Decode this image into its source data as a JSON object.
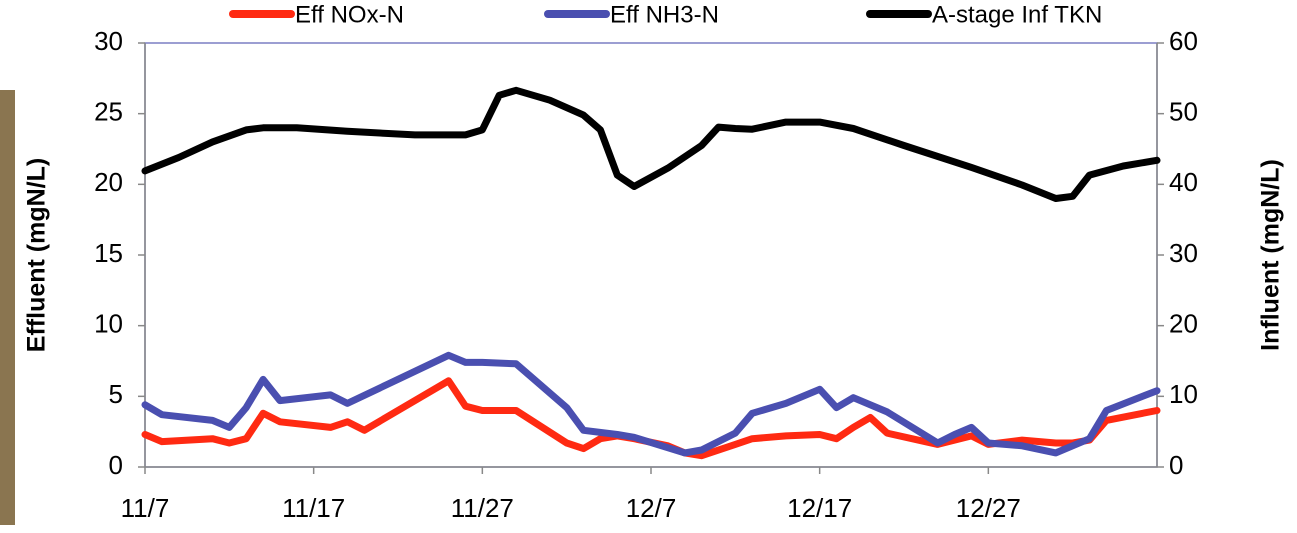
{
  "chart_data": {
    "type": "line",
    "y_label": "Effluent (mgN/L)",
    "y2_label": "Influent (mgN/L)",
    "xlim": [
      0,
      60
    ],
    "xticks": [
      {
        "value": 0,
        "label": "11/7"
      },
      {
        "value": 10,
        "label": "11/17"
      },
      {
        "value": 20,
        "label": "11/27"
      },
      {
        "value": 30,
        "label": "12/7"
      },
      {
        "value": 40,
        "label": "12/17"
      },
      {
        "value": 50,
        "label": "12/27"
      }
    ],
    "ylim": [
      0,
      30
    ],
    "yticks": [
      0,
      5,
      10,
      15,
      20,
      25,
      30
    ],
    "y2lim": [
      0,
      60
    ],
    "y2ticks": [
      0,
      10,
      20,
      30,
      40,
      50,
      60
    ],
    "legend": "top",
    "series": [
      {
        "name": "Eff NOx-N",
        "color": "#ff2a12",
        "x": [
          0,
          1,
          4,
          5,
          6,
          7,
          8,
          11,
          12,
          13,
          18,
          19,
          20,
          22,
          25,
          26,
          27,
          28,
          29,
          31,
          32,
          33,
          35,
          36,
          38,
          40,
          41,
          42,
          43,
          44,
          47,
          49,
          50,
          52,
          54,
          55,
          56,
          57,
          60
        ],
        "values": [
          2.3,
          1.8,
          2.0,
          1.7,
          2.0,
          3.8,
          3.2,
          2.8,
          3.2,
          2.6,
          6.1,
          4.3,
          4.0,
          4.0,
          1.7,
          1.3,
          2.0,
          2.2,
          2.0,
          1.5,
          1.0,
          0.8,
          1.6,
          2.0,
          2.2,
          2.3,
          2.0,
          2.8,
          3.5,
          2.4,
          1.6,
          2.2,
          1.6,
          1.9,
          1.7,
          1.7,
          1.9,
          3.3,
          4.0
        ]
      },
      {
        "name": "Eff NH3-N",
        "color": "#4a4fb0",
        "x": [
          0,
          1,
          4,
          5,
          6,
          7,
          8,
          11,
          12,
          18,
          19,
          20,
          22,
          25,
          26,
          28,
          29,
          32,
          33,
          35,
          36,
          38,
          40,
          41,
          42,
          44,
          47,
          48,
          49,
          50,
          52,
          54,
          56,
          57,
          60
        ],
        "values": [
          4.4,
          3.7,
          3.3,
          2.8,
          4.2,
          6.2,
          4.7,
          5.1,
          4.5,
          7.9,
          7.4,
          7.4,
          7.3,
          4.2,
          2.6,
          2.3,
          2.1,
          1.0,
          1.2,
          2.4,
          3.8,
          4.5,
          5.5,
          4.2,
          4.9,
          3.9,
          1.7,
          2.3,
          2.8,
          1.7,
          1.5,
          1.0,
          2.0,
          4.0,
          5.4
        ]
      },
      {
        "name": "A-stage Inf TKN",
        "color": "#000000",
        "axis": "y2",
        "x": [
          0,
          2,
          4,
          6,
          7,
          9,
          12,
          16,
          19,
          20,
          21,
          22,
          24,
          26,
          27,
          28,
          29,
          31,
          33,
          34,
          35,
          36,
          38,
          40,
          42,
          45,
          49,
          52,
          54,
          55,
          56,
          58,
          60
        ],
        "values": [
          41.9,
          43.8,
          46.0,
          47.7,
          48.0,
          48.0,
          47.5,
          47.0,
          47.0,
          47.7,
          52.6,
          53.3,
          51.9,
          49.8,
          47.7,
          41.3,
          39.7,
          42.3,
          45.5,
          48.1,
          47.9,
          47.8,
          48.8,
          48.8,
          47.9,
          45.5,
          42.4,
          39.9,
          38.0,
          38.3,
          41.3,
          42.6,
          43.4
        ]
      }
    ]
  }
}
